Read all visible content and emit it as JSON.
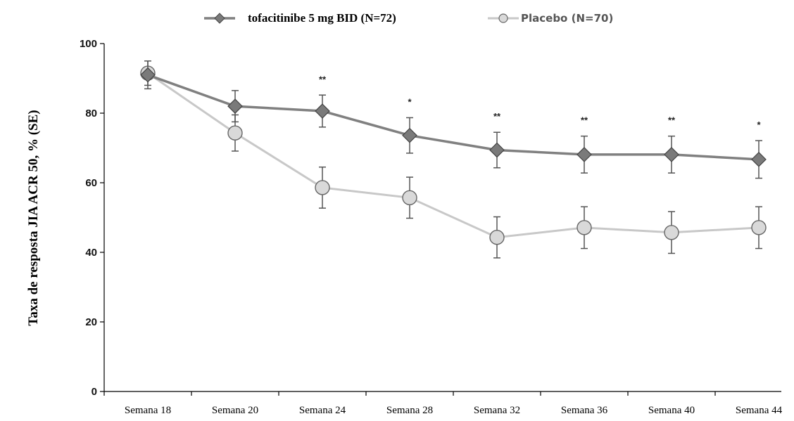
{
  "chart_data": {
    "type": "line",
    "categories": [
      "Semana 18",
      "Semana 20",
      "Semana 24",
      "Semana 28",
      "Semana 32",
      "Semana 36",
      "Semana 40",
      "Semana 44"
    ],
    "ylabel": "Taxa de resposta JIA ACR 50, % (SE)",
    "ylim": [
      0,
      100
    ],
    "yticks": [
      0,
      20,
      40,
      60,
      80,
      100
    ],
    "legend_position": "top",
    "series": [
      {
        "name": "tofacitinibe 5 mg BID (N=72)",
        "values": [
          91,
          82,
          80.6,
          73.6,
          69.4,
          68.1,
          68.1,
          66.7
        ],
        "se_low": [
          87,
          77.5,
          76,
          68.5,
          64.3,
          62.8,
          62.8,
          61.3
        ],
        "se_high": [
          95,
          86.5,
          85.2,
          78.7,
          74.5,
          73.4,
          73.4,
          72.1
        ],
        "color": "#808080",
        "marker": "diamond"
      },
      {
        "name": "Placebo (N=70)",
        "values": [
          91.5,
          74.3,
          58.6,
          55.7,
          44.3,
          47.1,
          45.7,
          47.1
        ],
        "se_low": [
          88,
          69.1,
          52.7,
          49.8,
          38.4,
          41.1,
          39.7,
          41.1
        ],
        "se_high": [
          95,
          79.5,
          64.5,
          61.6,
          50.2,
          53.1,
          51.7,
          53.1
        ],
        "color": "#c8c8c8",
        "marker": "circle"
      }
    ],
    "significance": [
      "",
      "",
      "**",
      "*",
      "**",
      "**",
      "**",
      "*"
    ]
  }
}
